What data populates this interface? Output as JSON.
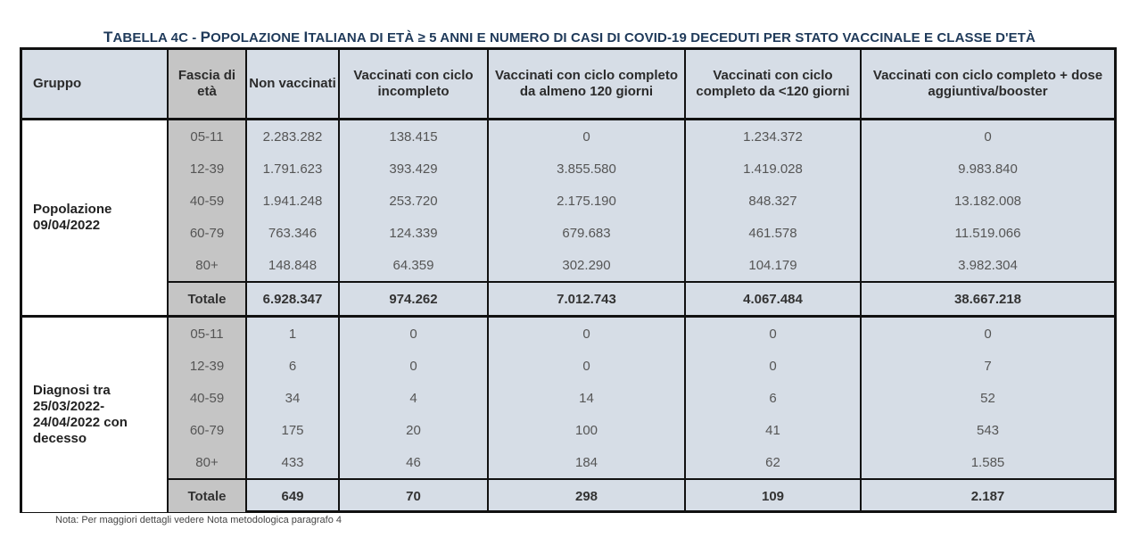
{
  "title_first": "T",
  "title_rest_a": "ABELLA 4C - ",
  "title_p": "P",
  "title_rest_b": "OPOLAZIONE ",
  "title_i": "I",
  "title_rest_c": "TALIANA DI ETÀ ≥ 5 ANNI E NUMERO DI CASI DI COVID-19 DECEDUTI PER STATO VACCINALE E CLASSE D'ETÀ",
  "headers": {
    "gruppo": "Gruppo",
    "fascia": "Fascia di età",
    "non_vacc": "Non vaccinati",
    "incompleto": "Vaccinati con ciclo incompleto",
    "completo_120": "Vaccinati con ciclo completo da almeno 120 giorni",
    "completo_lt120": "Vaccinati con ciclo completo da <120 giorni",
    "booster": "Vaccinati con ciclo completo + dose aggiuntiva/booster"
  },
  "groups": [
    {
      "label": "Popolazione 09/04/2022",
      "rows": [
        [
          "05-11",
          "2.283.282",
          "138.415",
          "0",
          "1.234.372",
          "0"
        ],
        [
          "12-39",
          "1.791.623",
          "393.429",
          "3.855.580",
          "1.419.028",
          "9.983.840"
        ],
        [
          "40-59",
          "1.941.248",
          "253.720",
          "2.175.190",
          "848.327",
          "13.182.008"
        ],
        [
          "60-79",
          "763.346",
          "124.339",
          "679.683",
          "461.578",
          "11.519.066"
        ],
        [
          "80+",
          "148.848",
          "64.359",
          "302.290",
          "104.179",
          "3.982.304"
        ]
      ],
      "total": [
        "Totale",
        "6.928.347",
        "974.262",
        "7.012.743",
        "4.067.484",
        "38.667.218"
      ]
    },
    {
      "label": "Diagnosi tra 25/03/2022-24/04/2022 con decesso",
      "rows": [
        [
          "05-11",
          "1",
          "0",
          "0",
          "0",
          "0"
        ],
        [
          "12-39",
          "6",
          "0",
          "0",
          "0",
          "7"
        ],
        [
          "40-59",
          "34",
          "4",
          "14",
          "6",
          "52"
        ],
        [
          "60-79",
          "175",
          "20",
          "100",
          "41",
          "543"
        ],
        [
          "80+",
          "433",
          "46",
          "184",
          "62",
          "1.585"
        ]
      ],
      "total": [
        "Totale",
        "649",
        "70",
        "298",
        "109",
        "2.187"
      ]
    }
  ],
  "note": "Nota: Per maggiori dettagli vedere Nota metodologica paragrafo 4"
}
